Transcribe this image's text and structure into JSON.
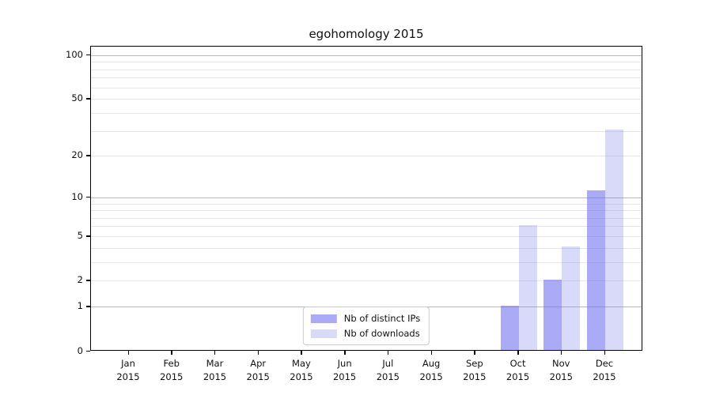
{
  "chart_data": {
    "type": "bar",
    "title": "egohomology 2015",
    "months": [
      "Jan",
      "Feb",
      "Mar",
      "Apr",
      "May",
      "Jun",
      "Jul",
      "Aug",
      "Sep",
      "Oct",
      "Nov",
      "Dec"
    ],
    "year_label": "2015",
    "series": [
      {
        "name": "Nb of distinct IPs",
        "color": "#6464f0",
        "opacity": 0.55,
        "values": [
          0,
          0,
          0,
          0,
          0,
          0,
          0,
          0,
          0,
          1,
          2,
          11
        ]
      },
      {
        "name": "Nb of downloads",
        "color": "#7878eb",
        "opacity": 0.28,
        "values": [
          0,
          0,
          0,
          0,
          0,
          0,
          0,
          0,
          0,
          6,
          4,
          30
        ]
      }
    ],
    "xlabel": "",
    "ylabel": "",
    "y_scale": "log1p",
    "y_axis_max": 115,
    "y_ticks": [
      0,
      1,
      2,
      5,
      10,
      20,
      50,
      100
    ],
    "y_major_gridlines": [
      1,
      10,
      100
    ],
    "y_minor_gridlines": [
      2,
      3,
      4,
      5,
      6,
      7,
      8,
      9,
      20,
      30,
      40,
      50,
      60,
      70,
      80,
      90
    ],
    "grid": true,
    "legend_position": "lower center"
  }
}
